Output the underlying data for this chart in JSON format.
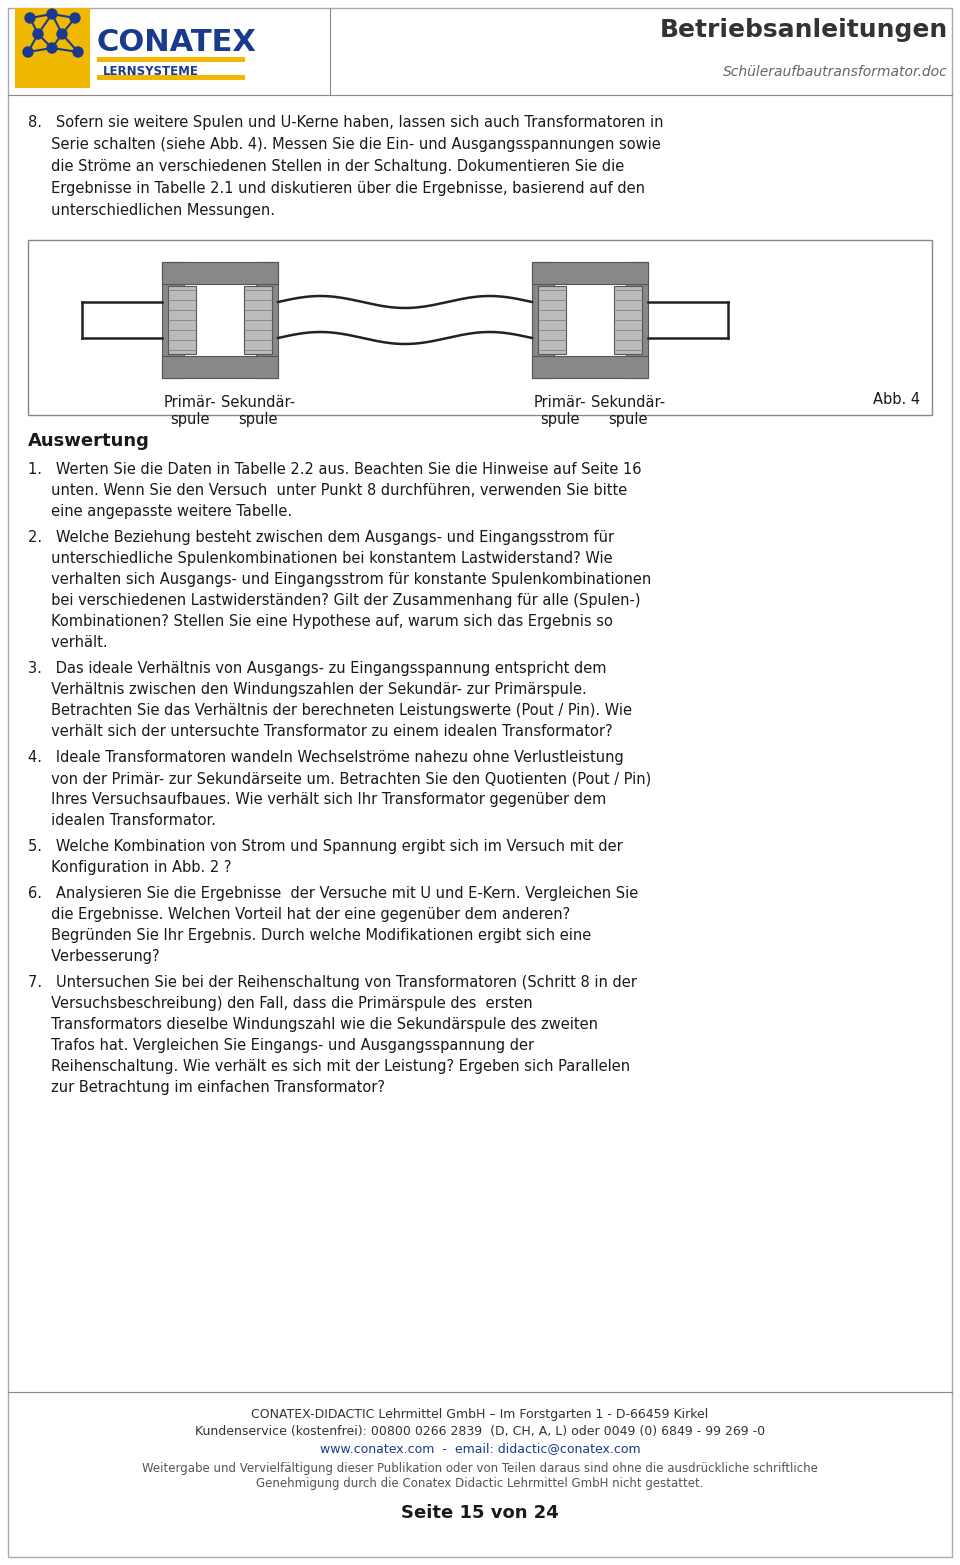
{
  "page_bg": "#ffffff",
  "title_right": "Betriebsanleitungen",
  "subtitle_right": "Schüleraufbautransformator.doc",
  "page_number": "Seite 15 von 24",
  "footer_company": "CONATEX-DIDACTIC Lehrmittel GmbH – Im Forstgarten 1 - D-66459 Kirkel",
  "footer_service": "Kundenservice (kostenfrei): 00800 0266 2839  (D, CH, A, L) oder 0049 (0) 6849 - 99 269 -0",
  "footer_web": "www.conatex.com  -  email: didactic@conatex.com",
  "footer_copy1": "Weitergabe und Vervielfältigung dieser Publikation oder von Teilen daraus sind ohne die ausdrückliche schriftliche",
  "footer_copy2": "Genehmigung durch die Conatex Didactic Lehrmittel GmbH nicht gestattet.",
  "item8_lines": [
    "8.   Sofern sie weitere Spulen und U-Kerne haben, lassen sich auch Transformatoren in",
    "     Serie schalten (siehe Abb. 4). Messen Sie die Ein- und Ausgangsspannungen sowie",
    "     die Ströme an verschiedenen Stellen in der Schaltung. Dokumentieren Sie die",
    "     Ergebnisse in Tabelle 2.1 und diskutieren über die Ergebnisse, basierend auf den",
    "     unterschiedlichen Messungen."
  ],
  "label_prim1": "Primär-\nspule",
  "label_sek1": "Sekundär-\nspule",
  "label_prim2": "Primär-\nspule",
  "label_sek2": "Sekundär-\nspule",
  "abb4_label": "Abb. 4",
  "auswertung_title": "Auswertung",
  "auswertung_items": [
    [
      "1.   Werten Sie die Daten in Tabelle 2.2 aus. Beachten Sie die Hinweise auf Seite 16",
      "     unten. Wenn Sie den Versuch  unter Punkt 8 durchführen, verwenden Sie bitte",
      "     eine angepasste weitere Tabelle."
    ],
    [
      "2.   Welche Beziehung besteht zwischen dem Ausgangs- und Eingangsstrom für",
      "     unterschiedliche Spulenkombinationen bei konstantem Lastwiderstand? Wie",
      "     verhalten sich Ausgangs- und Eingangsstrom für konstante Spulenkombinationen",
      "     bei verschiedenen Lastwiderständen? Gilt der Zusammenhang für alle (Spulen-)",
      "     Kombinationen? Stellen Sie eine Hypothese auf, warum sich das Ergebnis so",
      "     verhält."
    ],
    [
      "3.   Das ideale Verhältnis von Ausgangs- zu Eingangsspannung entspricht dem",
      "     Verhältnis zwischen den Windungszahlen der Sekundär- zur Primärspule.",
      "     Betrachten Sie das Verhältnis der berechneten Leistungswerte (Pout / Pin). Wie",
      "     verhält sich der untersuchte Transformator zu einem idealen Transformator?"
    ],
    [
      "4.   Ideale Transformatoren wandeln Wechselströme nahezu ohne Verlustleistung",
      "     von der Primär- zur Sekundärseite um. Betrachten Sie den Quotienten (Pout / Pin)",
      "     Ihres Versuchsaufbaues. Wie verhält sich Ihr Transformator gegenüber dem",
      "     idealen Transformator."
    ],
    [
      "5.   Welche Kombination von Strom und Spannung ergibt sich im Versuch mit der",
      "     Konfiguration in Abb. 2 ?"
    ],
    [
      "6.   Analysieren Sie die Ergebnisse  der Versuche mit U und E-Kern. Vergleichen Sie",
      "     die Ergebnisse. Welchen Vorteil hat der eine gegenüber dem anderen?",
      "     Begründen Sie Ihr Ergebnis. Durch welche Modifikationen ergibt sich eine",
      "     Verbesserung?"
    ],
    [
      "7.   Untersuchen Sie bei der Reihenschaltung von Transformatoren (Schritt 8 in der",
      "     Versuchsbeschreibung) den Fall, dass die Primärspule des  ersten",
      "     Transformators dieselbe Windungszahl wie die Sekundärspule des zweiten",
      "     Trafos hat. Vergleichen Sie Eingangs- und Ausgangsspannung der",
      "     Reihenschaltung. Wie verhält es sich mit der Leistung? Ergeben sich Parallelen",
      "     zur Betrachtung im einfachen Transformator?"
    ]
  ]
}
